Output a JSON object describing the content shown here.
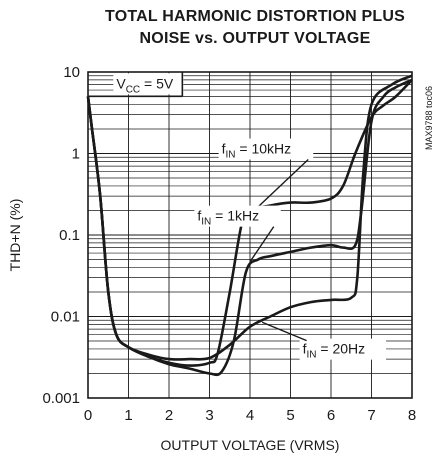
{
  "chart_data": {
    "type": "line",
    "title": "TOTAL HARMONIC DISTORTION PLUS",
    "subtitle": "NOISE vs. OUTPUT VOLTAGE",
    "xlabel": "OUTPUT VOLTAGE (VRMS)",
    "ylabel": "THD+N (%)",
    "xlim": [
      0,
      8
    ],
    "ylim": [
      0.001,
      10
    ],
    "yscale": "log",
    "x_ticks": [
      "0",
      "1",
      "2",
      "3",
      "4",
      "5",
      "6",
      "7",
      "8"
    ],
    "y_ticks": [
      {
        "value": 10,
        "label": "10"
      },
      {
        "value": 1,
        "label": "1"
      },
      {
        "value": 0.1,
        "label": "0.1"
      },
      {
        "value": 0.01,
        "label": "0.01"
      },
      {
        "value": 0.001,
        "label": "0.001"
      }
    ],
    "grid": true,
    "watermark": "MAX9788 toc06",
    "annotations": [
      {
        "text": "VCC = 5V",
        "x": 0.7,
        "y": 6.3
      },
      {
        "text": "fIN = 10kHz",
        "x": 3.3,
        "y": 1.0
      },
      {
        "text": "fIN = 1kHz",
        "x": 2.7,
        "y": 0.15
      },
      {
        "text": "fIN = 20Hz",
        "x": 5.3,
        "y": 0.0035
      }
    ],
    "series": [
      {
        "name": "fIN = 10kHz",
        "x": [
          0,
          0.1,
          0.3,
          0.5,
          0.7,
          1,
          1.5,
          2,
          2.5,
          3,
          3.2,
          3.5,
          3.8,
          4,
          4.5,
          5,
          5.5,
          6,
          6.3,
          6.6,
          7,
          7.3,
          7.6,
          8
        ],
        "y": [
          5,
          2,
          0.3,
          0.02,
          0.006,
          0.0042,
          0.0032,
          0.0027,
          0.0025,
          0.0027,
          0.0035,
          0.02,
          0.14,
          0.2,
          0.23,
          0.25,
          0.25,
          0.28,
          0.4,
          1.0,
          2.8,
          3.9,
          5.0,
          8
        ]
      },
      {
        "name": "fIN = 1kHz",
        "x": [
          0,
          0.1,
          0.3,
          0.5,
          0.7,
          1,
          1.5,
          2,
          2.5,
          3,
          3.3,
          3.6,
          3.9,
          4.2,
          4.5,
          5,
          5.5,
          6,
          6.3,
          6.6,
          6.75,
          7,
          7.3,
          7.6,
          8
        ],
        "y": [
          5,
          2,
          0.3,
          0.02,
          0.006,
          0.0042,
          0.0032,
          0.0026,
          0.0023,
          0.002,
          0.0021,
          0.005,
          0.035,
          0.05,
          0.055,
          0.062,
          0.07,
          0.075,
          0.07,
          0.075,
          0.2,
          2.5,
          5.0,
          6.5,
          8
        ]
      },
      {
        "name": "fIN = 20Hz",
        "x": [
          0,
          0.1,
          0.3,
          0.5,
          0.7,
          1,
          1.5,
          2,
          2.5,
          3,
          3.5,
          4,
          4.5,
          5,
          5.5,
          6,
          6.5,
          6.65,
          6.8,
          7,
          7.5,
          8
        ],
        "y": [
          5,
          2,
          0.3,
          0.02,
          0.006,
          0.0042,
          0.0034,
          0.003,
          0.003,
          0.0031,
          0.0045,
          0.0075,
          0.01,
          0.013,
          0.015,
          0.016,
          0.017,
          0.03,
          0.6,
          4.0,
          7.0,
          9
        ]
      }
    ]
  }
}
